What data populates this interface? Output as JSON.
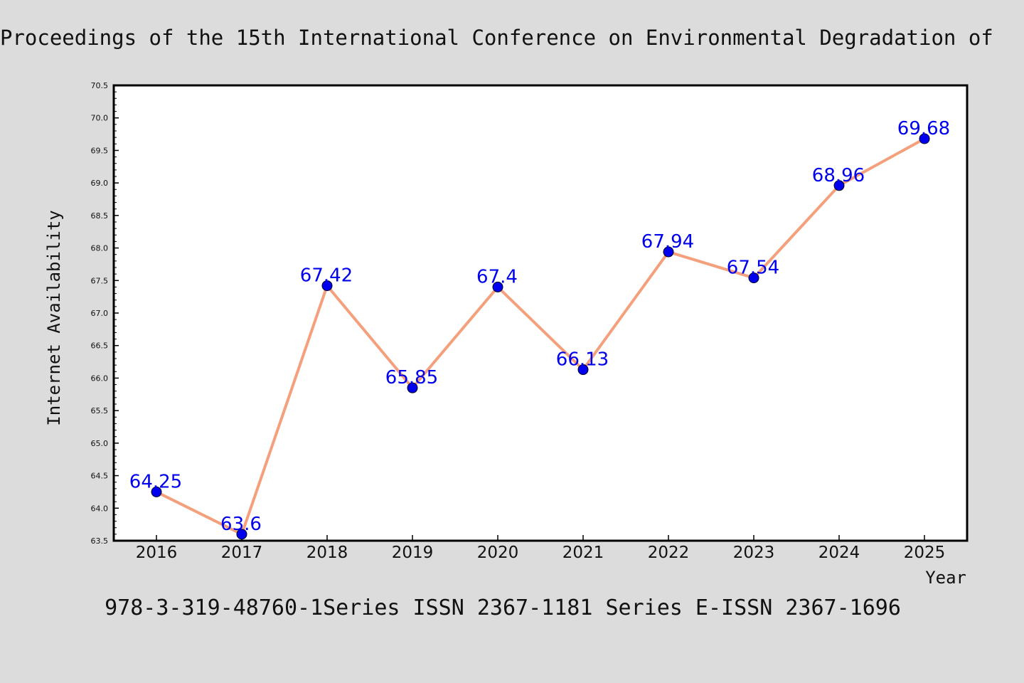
{
  "title": "Proceedings of the 15th International Conference on Environmental Degradation of",
  "footer": "978-3-319-48760-1Series ISSN 2367-1181 Series E-ISSN 2367-1696",
  "colors": {
    "background": "#dcdcdc",
    "plot_background": "#ffffff",
    "line": "#f4a07c",
    "marker": "#0000ee",
    "data_label": "#0000ee"
  },
  "chart_data": {
    "type": "line",
    "title": "Proceedings of the 15th International Conference on Environmental Degradation of",
    "xlabel": "Year",
    "ylabel": "Internet Availability",
    "x": [
      "2016",
      "2017",
      "2018",
      "2019",
      "2020",
      "2021",
      "2022",
      "2023",
      "2024",
      "2025"
    ],
    "series": [
      {
        "values": [
          64.25,
          63.6,
          67.42,
          65.85,
          67.4,
          66.13,
          67.94,
          67.54,
          68.96,
          69.68
        ],
        "labels": [
          "64.25",
          "63.6",
          "67.42",
          "65.85",
          "67.4",
          "66.13",
          "67.94",
          "67.54",
          "68.96",
          "69.68"
        ]
      }
    ],
    "ylim": [
      63.5,
      70.5
    ],
    "yticks": [
      "63.5",
      "64.0",
      "64.5",
      "65.0",
      "65.5",
      "66.0",
      "66.5",
      "67.0",
      "67.5",
      "68.0",
      "68.5",
      "69.0",
      "69.5",
      "70.0",
      "70.5"
    ],
    "grid": false,
    "legend": "none"
  }
}
